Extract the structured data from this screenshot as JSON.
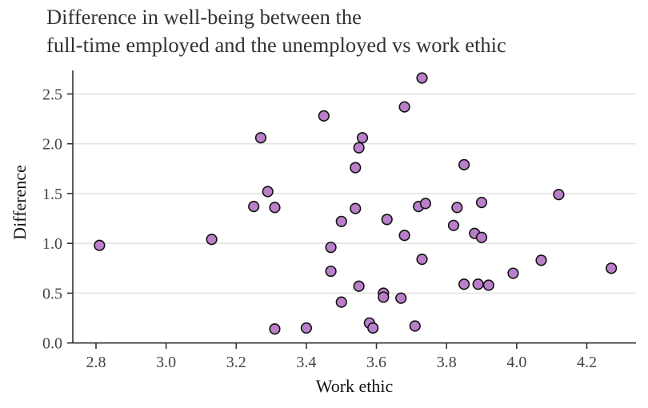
{
  "title": {
    "line1": "Difference in well-being between the",
    "line2": "full-time employed and the unemployed vs work ethic"
  },
  "axes": {
    "xlabel": "Work ethic",
    "ylabel": "Difference"
  },
  "style": {
    "point_fill": "#b97fc9",
    "point_stroke": "#111111",
    "grid_color": "#e3e3e3",
    "axis_color": "#333333"
  },
  "chart_data": {
    "type": "scatter",
    "title": "Difference in well-being between the full-time employed and the unemployed vs work ethic",
    "xlabel": "Work ethic",
    "ylabel": "Difference",
    "xlim": [
      2.73,
      4.34
    ],
    "ylim": [
      0.0,
      2.75
    ],
    "x_ticks": [
      2.8,
      3.0,
      3.2,
      3.4,
      3.6,
      3.8,
      4.0,
      4.2
    ],
    "x_tick_labels": [
      "2.8",
      "3.0",
      "3.2",
      "3.4",
      "3.6",
      "3.8",
      "4.0",
      "4.2"
    ],
    "y_ticks": [
      0.0,
      0.5,
      1.0,
      1.5,
      2.0,
      2.5
    ],
    "y_tick_labels": [
      "0.0",
      "0.5",
      "1.0",
      "1.5",
      "2.0",
      "2.5"
    ],
    "grid": "horizontal major gridlines only",
    "legend": "none",
    "points": [
      {
        "x": 2.81,
        "y": 0.98
      },
      {
        "x": 3.13,
        "y": 1.04
      },
      {
        "x": 3.25,
        "y": 1.37
      },
      {
        "x": 3.27,
        "y": 2.06
      },
      {
        "x": 3.29,
        "y": 1.52
      },
      {
        "x": 3.31,
        "y": 1.36
      },
      {
        "x": 3.31,
        "y": 0.14
      },
      {
        "x": 3.4,
        "y": 0.15
      },
      {
        "x": 3.45,
        "y": 2.28
      },
      {
        "x": 3.47,
        "y": 0.96
      },
      {
        "x": 3.47,
        "y": 0.72
      },
      {
        "x": 3.5,
        "y": 0.41
      },
      {
        "x": 3.5,
        "y": 1.22
      },
      {
        "x": 3.54,
        "y": 1.35
      },
      {
        "x": 3.54,
        "y": 1.76
      },
      {
        "x": 3.55,
        "y": 0.57
      },
      {
        "x": 3.55,
        "y": 1.96
      },
      {
        "x": 3.56,
        "y": 2.06
      },
      {
        "x": 3.58,
        "y": 0.2
      },
      {
        "x": 3.59,
        "y": 0.15
      },
      {
        "x": 3.62,
        "y": 0.5
      },
      {
        "x": 3.62,
        "y": 0.46
      },
      {
        "x": 3.63,
        "y": 1.24
      },
      {
        "x": 3.67,
        "y": 0.45
      },
      {
        "x": 3.68,
        "y": 2.37
      },
      {
        "x": 3.68,
        "y": 1.08
      },
      {
        "x": 3.71,
        "y": 0.17
      },
      {
        "x": 3.72,
        "y": 1.37
      },
      {
        "x": 3.73,
        "y": 2.66
      },
      {
        "x": 3.73,
        "y": 0.84
      },
      {
        "x": 3.74,
        "y": 1.4
      },
      {
        "x": 3.82,
        "y": 1.18
      },
      {
        "x": 3.83,
        "y": 1.36
      },
      {
        "x": 3.85,
        "y": 0.59
      },
      {
        "x": 3.85,
        "y": 1.79
      },
      {
        "x": 3.88,
        "y": 1.1
      },
      {
        "x": 3.89,
        "y": 0.59
      },
      {
        "x": 3.9,
        "y": 1.41
      },
      {
        "x": 3.9,
        "y": 1.06
      },
      {
        "x": 3.92,
        "y": 0.58
      },
      {
        "x": 3.99,
        "y": 0.7
      },
      {
        "x": 4.07,
        "y": 0.83
      },
      {
        "x": 4.12,
        "y": 1.49
      },
      {
        "x": 4.27,
        "y": 0.75
      }
    ]
  }
}
